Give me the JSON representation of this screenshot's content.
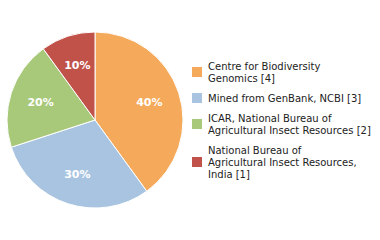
{
  "chart_data": {
    "type": "pie",
    "categories": [
      "Centre for Biodiversity\nGenomics [4]",
      "Mined from GenBank, NCBI [3]",
      "ICAR, National Bureau of\nAgricultural Insect Resources [2]",
      "National Bureau of\nAgricultural Insect Resources,\nIndia [1]"
    ],
    "values": [
      40,
      30,
      20,
      10
    ],
    "value_labels": [
      "40%",
      "30%",
      "20%",
      "10%"
    ],
    "colors": [
      "#F5A95A",
      "#A8C4E0",
      "#A8C87A",
      "#C0524A"
    ],
    "data_labels": true,
    "legend": "right"
  }
}
